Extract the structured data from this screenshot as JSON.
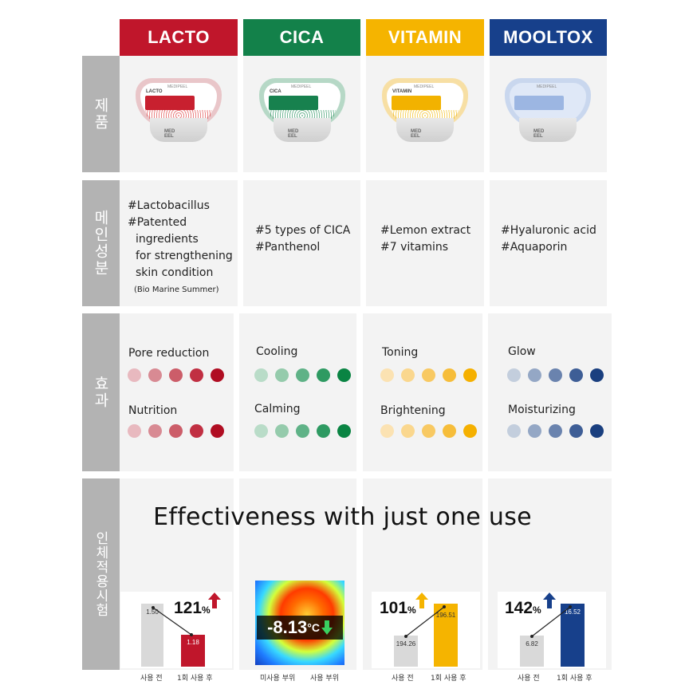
{
  "columns": [
    {
      "key": "lacto",
      "header": "LACTO",
      "color": "#c0162b"
    },
    {
      "key": "cica",
      "header": "CICA",
      "color": "#13814a"
    },
    {
      "key": "vitamin",
      "header": "VITAMIN",
      "color": "#f5b400"
    },
    {
      "key": "mooltox",
      "header": "MOOLTOX",
      "color": "#17408b"
    }
  ],
  "row_labels": {
    "product": "제품",
    "ingredients": "메인성분",
    "effects": "효과",
    "clinical": "인체적용시험"
  },
  "products": {
    "lacto": {
      "brand": "MEDIPEEL",
      "name": "LACTO",
      "body_brand": "MED  EEL"
    },
    "cica": {
      "brand": "MEDIPEEL",
      "name": "CICA",
      "body_brand": "MED  EEL"
    },
    "vitamin": {
      "brand": "MEDIPEEL",
      "name": "VITAMIN",
      "body_brand": "MED  EEL"
    },
    "mooltox": {
      "brand": "MEDIPEEL",
      "name": "",
      "body_brand": "MED  EEL"
    }
  },
  "ingredients": {
    "lacto": [
      "#Lactobacillus",
      "#Patented",
      "  ingredients",
      "  for strengthening",
      "  skin condition"
    ],
    "lacto_note": "(Bio Marine Summer)",
    "cica": [
      "#5 types of CICA",
      "#Panthenol"
    ],
    "vitamin": [
      "#Lemon extract",
      "#7 vitamins"
    ],
    "mooltox": [
      "#Hyaluronic acid",
      "#Aquaporin"
    ]
  },
  "effects": {
    "lacto": [
      {
        "label": "Pore reduction",
        "level": 5
      },
      {
        "label": "Nutrition",
        "level": 5
      }
    ],
    "cica": [
      {
        "label": "Cooling",
        "level": 5
      },
      {
        "label": "Calming",
        "level": 5
      }
    ],
    "vitamin": [
      {
        "label": "Toning",
        "level": 5
      },
      {
        "label": "Brightening",
        "level": 5
      }
    ],
    "mooltox": [
      {
        "label": "Glow",
        "level": 5
      },
      {
        "label": "Moisturizing",
        "level": 5
      }
    ]
  },
  "dot_colors": {
    "lacto": [
      "#e8b9bf",
      "#d88a93",
      "#cc5d69",
      "#c12f42",
      "#b00d22"
    ],
    "cica": [
      "#b9dcc8",
      "#95cbac",
      "#5fb287",
      "#2e9a62",
      "#0a8443"
    ],
    "vitamin": [
      "#fbe2b2",
      "#fad78e",
      "#f8c962",
      "#f6bd3a",
      "#f5b000"
    ],
    "mooltox": [
      "#c3cedd",
      "#94a7c5",
      "#6a83ae",
      "#3e5e96",
      "#1a3f7f"
    ]
  },
  "clinical_title": "Effectiveness with just one use",
  "clinical": {
    "lacto": {
      "before": "1.50",
      "after": "1.18",
      "percent": "121",
      "unit": "%",
      "arrow": "up",
      "label_before": "사용 전",
      "label_after": "1회 사용 후"
    },
    "cica": {
      "value": "-8.13",
      "unit": "°C",
      "label_before": "미사용 부위",
      "label_after": "사용 부위"
    },
    "vitamin": {
      "before": "194.26",
      "after": "196.51",
      "percent": "101",
      "unit": "%",
      "label_before": "사용 전",
      "label_after": "1회 사용 후"
    },
    "mooltox": {
      "before": "6.82",
      "after": "16.52",
      "percent": "142",
      "unit": "%",
      "label_before": "사용 전",
      "label_after": "1회 사용 후"
    }
  }
}
